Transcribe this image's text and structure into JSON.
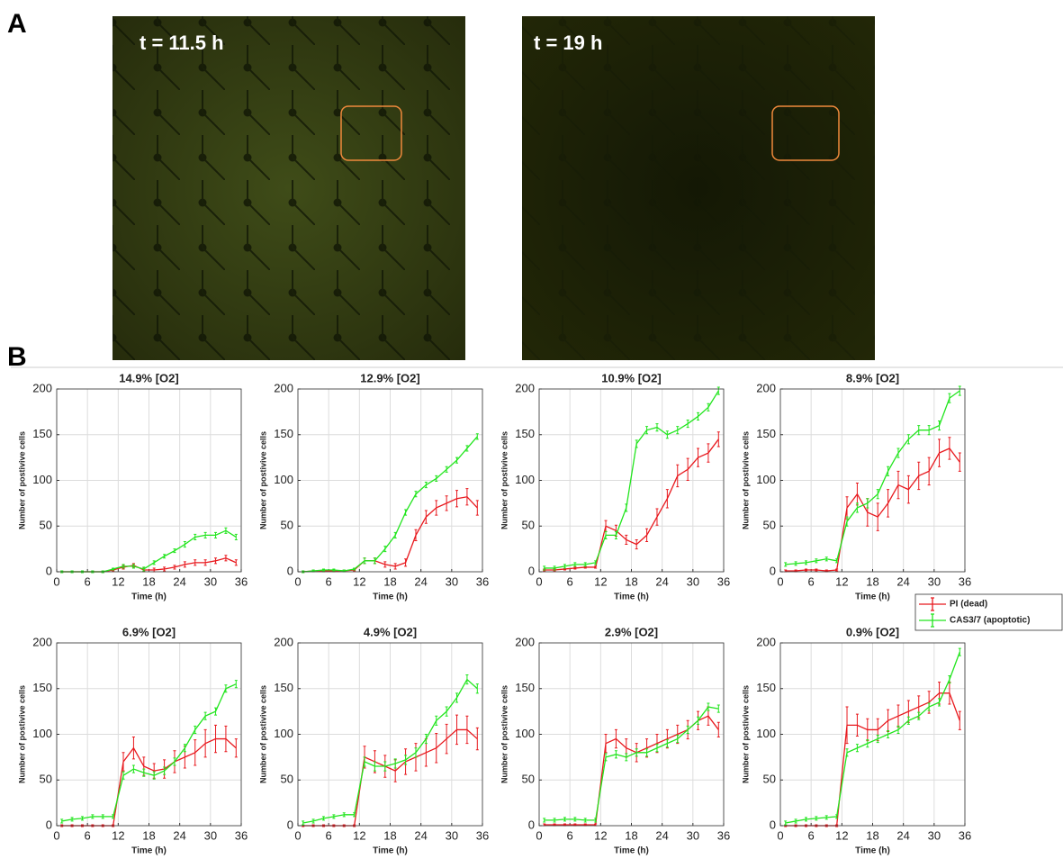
{
  "panel_labels": [
    "A",
    "B"
  ],
  "images": [
    {
      "caption": "t = 11.5 h"
    },
    {
      "caption": "t = 19 h"
    }
  ],
  "chart_data": [
    {
      "type": "line",
      "title": "14.9% [O2]",
      "xlabel": "Time (h)",
      "ylabel": "Number of postivive cells",
      "x": [
        1,
        3,
        5,
        7,
        9,
        11,
        13,
        15,
        17,
        19,
        21,
        23,
        25,
        27,
        29,
        31,
        33,
        35
      ],
      "xlim": [
        0,
        36
      ],
      "xticks": [
        0,
        6,
        12,
        18,
        24,
        30,
        36
      ],
      "ylim": [
        0,
        200
      ],
      "yticks": [
        0,
        50,
        100,
        150,
        200
      ],
      "grid": true,
      "series": [
        {
          "name": "PI (dead)",
          "color": "#e8191e",
          "values": [
            0,
            0,
            0,
            0,
            0,
            2,
            5,
            7,
            2,
            2,
            3,
            5,
            8,
            10,
            10,
            12,
            15,
            10
          ],
          "errors": [
            1,
            1,
            1,
            1,
            1,
            1,
            2,
            2,
            2,
            2,
            2,
            2,
            3,
            3,
            3,
            3,
            3,
            3
          ]
        },
        {
          "name": "CAS3/7 (apoptotic)",
          "color": "#22e51e",
          "values": [
            0,
            0,
            0,
            0,
            0,
            3,
            6,
            6,
            3,
            10,
            17,
            23,
            30,
            38,
            40,
            40,
            45,
            38
          ],
          "errors": [
            1,
            1,
            1,
            1,
            1,
            1,
            2,
            2,
            2,
            2,
            2,
            2,
            3,
            3,
            3,
            3,
            3,
            3
          ]
        }
      ]
    },
    {
      "type": "line",
      "title": "12.9% [O2]",
      "xlabel": "Time (h)",
      "ylabel": "Number of postivive cells",
      "x": [
        1,
        3,
        5,
        7,
        9,
        11,
        13,
        15,
        17,
        19,
        21,
        23,
        25,
        27,
        29,
        31,
        33,
        35
      ],
      "xlim": [
        0,
        36
      ],
      "xticks": [
        0,
        6,
        12,
        18,
        24,
        30,
        36
      ],
      "ylim": [
        0,
        200
      ],
      "yticks": [
        0,
        50,
        100,
        150,
        200
      ],
      "grid": true,
      "series": [
        {
          "name": "PI (dead)",
          "color": "#e8191e",
          "values": [
            0,
            1,
            1,
            1,
            1,
            2,
            12,
            12,
            8,
            6,
            10,
            40,
            60,
            70,
            75,
            80,
            82,
            70
          ],
          "errors": [
            1,
            1,
            1,
            1,
            1,
            1,
            3,
            3,
            3,
            3,
            4,
            6,
            7,
            8,
            8,
            9,
            9,
            8
          ]
        },
        {
          "name": "CAS3/7 (apoptotic)",
          "color": "#22e51e",
          "values": [
            0,
            1,
            2,
            2,
            1,
            3,
            12,
            12,
            25,
            40,
            65,
            85,
            95,
            102,
            112,
            122,
            135,
            148
          ],
          "errors": [
            1,
            1,
            1,
            1,
            1,
            1,
            3,
            3,
            3,
            3,
            3,
            3,
            3,
            3,
            3,
            3,
            3,
            3
          ]
        }
      ]
    },
    {
      "type": "line",
      "title": "10.9% [O2]",
      "xlabel": "Time (h)",
      "ylabel": "Number of postivive cells",
      "x": [
        1,
        3,
        5,
        7,
        9,
        11,
        13,
        15,
        17,
        19,
        21,
        23,
        25,
        27,
        29,
        31,
        33,
        35
      ],
      "xlim": [
        0,
        36
      ],
      "xticks": [
        0,
        6,
        12,
        18,
        24,
        30,
        36
      ],
      "ylim": [
        0,
        200
      ],
      "yticks": [
        0,
        50,
        100,
        150,
        200
      ],
      "grid": true,
      "series": [
        {
          "name": "PI (dead)",
          "color": "#e8191e",
          "values": [
            2,
            2,
            3,
            4,
            5,
            5,
            50,
            45,
            35,
            30,
            40,
            60,
            80,
            105,
            112,
            125,
            130,
            145
          ],
          "errors": [
            1,
            1,
            1,
            1,
            1,
            1,
            6,
            6,
            5,
            5,
            7,
            9,
            10,
            12,
            12,
            10,
            10,
            8
          ]
        },
        {
          "name": "CAS3/7 (apoptotic)",
          "color": "#22e51e",
          "values": [
            4,
            4,
            6,
            8,
            8,
            10,
            40,
            40,
            70,
            140,
            155,
            158,
            150,
            155,
            162,
            170,
            180,
            198
          ],
          "errors": [
            2,
            2,
            2,
            2,
            2,
            2,
            4,
            4,
            4,
            4,
            4,
            4,
            4,
            4,
            4,
            4,
            4,
            4
          ]
        }
      ]
    },
    {
      "type": "line",
      "title": "8.9% [O2]",
      "xlabel": "Time (h)",
      "ylabel": "Number of postivive cells",
      "legend": "below-right",
      "x": [
        1,
        3,
        5,
        7,
        9,
        11,
        13,
        15,
        17,
        19,
        21,
        23,
        25,
        27,
        29,
        31,
        33,
        35
      ],
      "xlim": [
        0,
        36
      ],
      "xticks": [
        0,
        6,
        12,
        18,
        24,
        30,
        36
      ],
      "ylim": [
        0,
        200
      ],
      "yticks": [
        0,
        50,
        100,
        150,
        200
      ],
      "grid": true,
      "series": [
        {
          "name": "PI (dead)",
          "color": "#e8191e",
          "values": [
            1,
            1,
            2,
            2,
            1,
            2,
            70,
            85,
            65,
            60,
            75,
            95,
            90,
            105,
            110,
            130,
            135,
            120
          ],
          "errors": [
            1,
            1,
            1,
            1,
            1,
            1,
            12,
            12,
            15,
            15,
            15,
            15,
            15,
            15,
            15,
            15,
            12,
            10
          ]
        },
        {
          "name": "CAS3/7 (apoptotic)",
          "color": "#22e51e",
          "values": [
            8,
            9,
            10,
            12,
            14,
            12,
            55,
            70,
            75,
            85,
            110,
            130,
            145,
            155,
            155,
            160,
            190,
            198
          ],
          "errors": [
            2,
            2,
            2,
            2,
            2,
            2,
            5,
            5,
            5,
            5,
            5,
            5,
            5,
            5,
            5,
            5,
            5,
            5
          ]
        }
      ]
    },
    {
      "type": "line",
      "title": "6.9% [O2]",
      "xlabel": "Time (h)",
      "ylabel": "Number of postivive cells",
      "x": [
        1,
        3,
        5,
        7,
        9,
        11,
        13,
        15,
        17,
        19,
        21,
        23,
        25,
        27,
        29,
        31,
        33,
        35
      ],
      "xlim": [
        0,
        36
      ],
      "xticks": [
        0,
        6,
        12,
        18,
        24,
        30,
        36
      ],
      "ylim": [
        0,
        200
      ],
      "yticks": [
        0,
        50,
        100,
        150,
        200
      ],
      "grid": true,
      "series": [
        {
          "name": "PI (dead)",
          "color": "#e8191e",
          "values": [
            0,
            0,
            0,
            0,
            0,
            0,
            70,
            85,
            65,
            60,
            62,
            70,
            75,
            80,
            90,
            95,
            95,
            85
          ],
          "errors": [
            1,
            1,
            1,
            1,
            1,
            1,
            10,
            12,
            10,
            8,
            10,
            12,
            12,
            14,
            15,
            15,
            14,
            10
          ]
        },
        {
          "name": "CAS3/7 (apoptotic)",
          "color": "#22e51e",
          "values": [
            5,
            7,
            8,
            10,
            10,
            10,
            55,
            62,
            58,
            55,
            60,
            70,
            85,
            105,
            120,
            125,
            150,
            155
          ],
          "errors": [
            2,
            2,
            2,
            2,
            2,
            2,
            4,
            4,
            4,
            4,
            4,
            4,
            4,
            4,
            4,
            4,
            4,
            4
          ]
        }
      ]
    },
    {
      "type": "line",
      "title": "4.9% [O2]",
      "xlabel": "Time (h)",
      "ylabel": "Number of postivive cells",
      "x": [
        1,
        3,
        5,
        7,
        9,
        11,
        13,
        15,
        17,
        19,
        21,
        23,
        25,
        27,
        29,
        31,
        33,
        35
      ],
      "xlim": [
        0,
        36
      ],
      "xticks": [
        0,
        6,
        12,
        18,
        24,
        30,
        36
      ],
      "ylim": [
        0,
        200
      ],
      "yticks": [
        0,
        50,
        100,
        150,
        200
      ],
      "grid": true,
      "series": [
        {
          "name": "PI (dead)",
          "color": "#e8191e",
          "values": [
            0,
            0,
            0,
            0,
            0,
            0,
            75,
            70,
            65,
            60,
            70,
            75,
            80,
            85,
            95,
            105,
            105,
            95
          ],
          "errors": [
            1,
            1,
            1,
            1,
            1,
            1,
            12,
            12,
            12,
            12,
            14,
            15,
            15,
            16,
            16,
            16,
            15,
            12
          ]
        },
        {
          "name": "CAS3/7 (apoptotic)",
          "color": "#22e51e",
          "values": [
            3,
            5,
            8,
            10,
            12,
            12,
            70,
            65,
            65,
            68,
            72,
            80,
            95,
            115,
            125,
            140,
            160,
            150
          ],
          "errors": [
            2,
            2,
            2,
            2,
            2,
            2,
            5,
            5,
            5,
            5,
            5,
            5,
            5,
            5,
            5,
            5,
            5,
            5
          ]
        }
      ]
    },
    {
      "type": "line",
      "title": "2.9% [O2]",
      "xlabel": "Time (h)",
      "ylabel": "Number of postivive cells",
      "x": [
        1,
        3,
        5,
        7,
        9,
        11,
        13,
        15,
        17,
        19,
        21,
        23,
        25,
        27,
        29,
        31,
        33,
        35
      ],
      "xlim": [
        0,
        36
      ],
      "xticks": [
        0,
        6,
        12,
        18,
        24,
        30,
        36
      ],
      "ylim": [
        0,
        200
      ],
      "yticks": [
        0,
        50,
        100,
        150,
        200
      ],
      "grid": true,
      "series": [
        {
          "name": "PI (dead)",
          "color": "#e8191e",
          "values": [
            1,
            1,
            1,
            1,
            1,
            1,
            90,
            95,
            85,
            80,
            85,
            90,
            95,
            100,
            105,
            115,
            120,
            105
          ],
          "errors": [
            1,
            1,
            1,
            1,
            1,
            1,
            10,
            10,
            10,
            10,
            10,
            10,
            10,
            10,
            10,
            10,
            10,
            8
          ]
        },
        {
          "name": "CAS3/7 (apoptotic)",
          "color": "#22e51e",
          "values": [
            6,
            6,
            7,
            7,
            6,
            6,
            75,
            78,
            75,
            80,
            80,
            85,
            90,
            95,
            105,
            115,
            130,
            128
          ],
          "errors": [
            2,
            2,
            2,
            2,
            2,
            2,
            4,
            4,
            4,
            4,
            4,
            4,
            4,
            4,
            4,
            4,
            4,
            4
          ]
        }
      ]
    },
    {
      "type": "line",
      "title": "0.9% [O2]",
      "xlabel": "Time (h)",
      "ylabel": "Number of postivive cells",
      "x": [
        1,
        3,
        5,
        7,
        9,
        11,
        13,
        15,
        17,
        19,
        21,
        23,
        25,
        27,
        29,
        31,
        33,
        35
      ],
      "xlim": [
        0,
        36
      ],
      "xticks": [
        0,
        6,
        12,
        18,
        24,
        30,
        36
      ],
      "ylim": [
        0,
        200
      ],
      "yticks": [
        0,
        50,
        100,
        150,
        200
      ],
      "grid": true,
      "series": [
        {
          "name": "PI (dead)",
          "color": "#e8191e",
          "values": [
            0,
            0,
            0,
            0,
            0,
            0,
            110,
            110,
            105,
            105,
            115,
            120,
            125,
            130,
            135,
            145,
            145,
            115
          ],
          "errors": [
            1,
            1,
            1,
            1,
            1,
            1,
            20,
            12,
            12,
            12,
            12,
            12,
            12,
            12,
            12,
            12,
            12,
            10
          ]
        },
        {
          "name": "CAS3/7 (apoptotic)",
          "color": "#22e51e",
          "values": [
            3,
            5,
            7,
            8,
            9,
            10,
            80,
            85,
            90,
            95,
            100,
            105,
            115,
            120,
            130,
            135,
            160,
            190
          ],
          "errors": [
            2,
            2,
            2,
            2,
            2,
            2,
            4,
            4,
            4,
            4,
            4,
            4,
            4,
            4,
            4,
            4,
            4,
            4
          ]
        }
      ]
    }
  ]
}
